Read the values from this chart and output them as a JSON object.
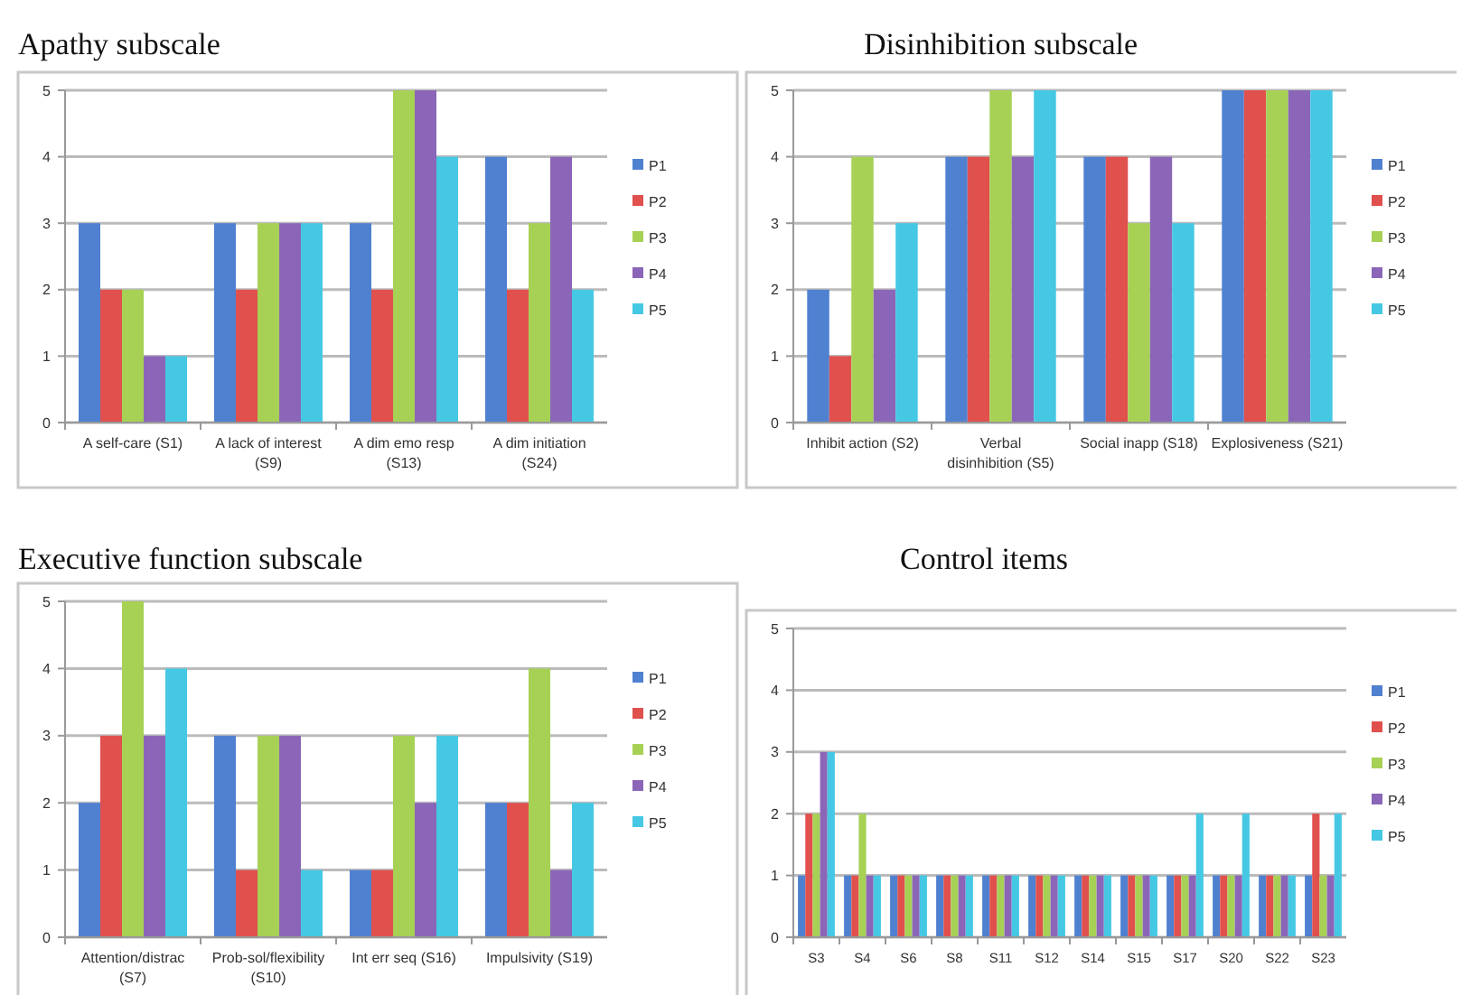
{
  "chart_data": [
    {
      "type": "bar",
      "title": "Apathy subscale",
      "categories": [
        "A self-care (S1)",
        "A lack of interest (S9)",
        "A dim emo resp (S13)",
        "A dim initiation (S24)"
      ],
      "ylim": [
        0,
        5
      ],
      "yticks": [
        0,
        1,
        2,
        3,
        4,
        5
      ],
      "grid": "y",
      "legend": "right",
      "series": [
        {
          "name": "P1",
          "color": "#4f81d0",
          "values": [
            3,
            3,
            3,
            4
          ]
        },
        {
          "name": "P2",
          "color": "#e0504d",
          "values": [
            2,
            2,
            2,
            2
          ]
        },
        {
          "name": "P3",
          "color": "#a6d155",
          "values": [
            2,
            3,
            5,
            3
          ]
        },
        {
          "name": "P4",
          "color": "#8b66b8",
          "values": [
            1,
            3,
            5,
            4
          ]
        },
        {
          "name": "P5",
          "color": "#45c8e4",
          "values": [
            1,
            3,
            4,
            2
          ]
        }
      ]
    },
    {
      "type": "bar",
      "title": "Disinhibition subscale",
      "categories": [
        "Inhibit action (S2)",
        "Verbal disinhibition (S5)",
        "Social inapp (S18)",
        "Explosiveness (S21)"
      ],
      "ylim": [
        0,
        5
      ],
      "yticks": [
        0,
        1,
        2,
        3,
        4,
        5
      ],
      "grid": "y",
      "legend": "right",
      "series": [
        {
          "name": "P1",
          "color": "#4f81d0",
          "values": [
            2,
            4,
            4,
            5
          ]
        },
        {
          "name": "P2",
          "color": "#e0504d",
          "values": [
            1,
            4,
            4,
            5
          ]
        },
        {
          "name": "P3",
          "color": "#a6d155",
          "values": [
            4,
            5,
            3,
            5
          ]
        },
        {
          "name": "P4",
          "color": "#8b66b8",
          "values": [
            2,
            4,
            4,
            5
          ]
        },
        {
          "name": "P5",
          "color": "#45c8e4",
          "values": [
            3,
            5,
            3,
            5
          ]
        }
      ]
    },
    {
      "type": "bar",
      "title": "Executive function subscale",
      "categories": [
        "Attention/distrac (S7)",
        "Prob-sol/flexibility (S10)",
        "Int err seq (S16)",
        "Impulsivity (S19)"
      ],
      "ylim": [
        0,
        5
      ],
      "yticks": [
        0,
        1,
        2,
        3,
        4,
        5
      ],
      "grid": "y",
      "legend": "right",
      "series": [
        {
          "name": "P1",
          "color": "#4f81d0",
          "values": [
            2,
            3,
            1,
            2
          ]
        },
        {
          "name": "P2",
          "color": "#e0504d",
          "values": [
            3,
            1,
            1,
            2
          ]
        },
        {
          "name": "P3",
          "color": "#a6d155",
          "values": [
            5,
            3,
            3,
            4
          ]
        },
        {
          "name": "P4",
          "color": "#8b66b8",
          "values": [
            3,
            3,
            2,
            1
          ]
        },
        {
          "name": "P5",
          "color": "#45c8e4",
          "values": [
            4,
            1,
            3,
            2
          ]
        }
      ]
    },
    {
      "type": "bar",
      "title": "Control items",
      "categories": [
        "S3",
        "S4",
        "S6",
        "S8",
        "S11",
        "S12",
        "S14",
        "S15",
        "S17",
        "S20",
        "S22",
        "S23"
      ],
      "ylim": [
        0,
        5
      ],
      "yticks": [
        0,
        1,
        2,
        3,
        4,
        5
      ],
      "grid": "y",
      "legend": "right",
      "series": [
        {
          "name": "P1",
          "color": "#4f81d0",
          "values": [
            1,
            1,
            1,
            1,
            1,
            1,
            1,
            1,
            1,
            1,
            1,
            1
          ]
        },
        {
          "name": "P2",
          "color": "#e0504d",
          "values": [
            2,
            1,
            1,
            1,
            1,
            1,
            1,
            1,
            1,
            1,
            1,
            2
          ]
        },
        {
          "name": "P3",
          "color": "#a6d155",
          "values": [
            2,
            2,
            1,
            1,
            1,
            1,
            1,
            1,
            1,
            1,
            1,
            1
          ]
        },
        {
          "name": "P4",
          "color": "#8b66b8",
          "values": [
            3,
            1,
            1,
            1,
            1,
            1,
            1,
            1,
            1,
            1,
            1,
            1
          ]
        },
        {
          "name": "P5",
          "color": "#45c8e4",
          "values": [
            3,
            1,
            1,
            1,
            1,
            1,
            1,
            1,
            2,
            2,
            1,
            2
          ]
        }
      ]
    }
  ]
}
